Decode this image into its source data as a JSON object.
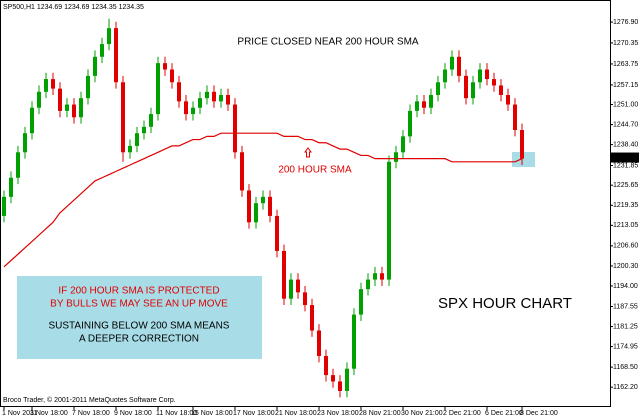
{
  "chart_data": {
    "type": "candlestick",
    "header": "SP500,H1 1234.69 1234.69 1234.35 1234.35",
    "footer": "Broco Trader, © 2001-2011 MetaQuotes Software Corp.",
    "annotations": {
      "title": "PRICE CLOSED NEAR 200 HOUR SMA",
      "sma_label": "200 HOUR SMA",
      "box_lines": [
        "IF 200 HOUR SMA IS PROTECTED",
        "BY BULLS WE MAY SEE AN UP MOVE",
        "SUSTAINING BELOW 200 SMA MEANS",
        "A DEEPER CORRECTION"
      ],
      "chart_name": "SPX HOUR CHART"
    },
    "last_price": 1234.35,
    "up_color": "#00a000",
    "down_color": "#e00000",
    "sma_color": "#e00000",
    "ylim": [
      1156.6,
      1282.9
    ],
    "yticks": [
      {
        "value": 1276.9,
        "label": "1276.90"
      },
      1270.35,
      1263.75,
      1257.15,
      {
        "value": 1251,
        "label": "1251.00"
      },
      {
        "value": 1244.7,
        "label": "1244.70"
      },
      {
        "value": 1238.4,
        "label": "1238.40"
      },
      1231.85,
      1225.65,
      1219.35,
      1213.05,
      {
        "value": 1206.6,
        "label": "1206.60"
      },
      {
        "value": 1200.3,
        "label": "1200.30"
      },
      {
        "value": 1194,
        "label": "1194.00"
      },
      1187.55,
      1181.25,
      1174.95,
      {
        "value": 1168.5,
        "label": "1168.50"
      },
      {
        "value": 1162.2,
        "label": "1162.20"
      }
    ],
    "categories": [
      "1 Nov 2011",
      null,
      null,
      null,
      "3 Nov 18:00",
      null,
      null,
      null,
      null,
      null,
      "7 Nov 18:00",
      null,
      null,
      null,
      null,
      null,
      "9 Nov 18:00",
      null,
      null,
      null,
      null,
      null,
      "11 Nov 18:00",
      null,
      null,
      null,
      null,
      "15 Nov 18:00",
      null,
      null,
      null,
      null,
      null,
      "17 Nov 18:00",
      null,
      null,
      null,
      null,
      null,
      "21 Nov 18:00",
      null,
      null,
      null,
      null,
      null,
      "23 Nov 18:00",
      null,
      null,
      null,
      null,
      null,
      "28 Nov 21:00",
      null,
      null,
      null,
      null,
      null,
      "30 Nov 21:00",
      null,
      null,
      null,
      null,
      null,
      "2 Dec 21:00",
      null,
      null,
      null,
      null,
      null,
      "6 Dec 21:00",
      null,
      null,
      null,
      null,
      "8 Dec 21:00"
    ],
    "ohlc": [
      [
        1216,
        1224,
        1214,
        1222
      ],
      [
        1222,
        1230,
        1220,
        1228
      ],
      [
        1228,
        1238,
        1226,
        1236
      ],
      [
        1236,
        1244,
        1234,
        1242
      ],
      [
        1242,
        1252,
        1240,
        1250
      ],
      [
        1250,
        1257,
        1248,
        1255
      ],
      [
        1255,
        1261,
        1253,
        1259
      ],
      [
        1259,
        1261,
        1254,
        1256
      ],
      [
        1256,
        1258,
        1247,
        1249
      ],
      [
        1249,
        1253,
        1247,
        1251
      ],
      [
        1251,
        1253,
        1245,
        1247
      ],
      [
        1247,
        1255,
        1245,
        1253
      ],
      [
        1253,
        1262,
        1251,
        1260
      ],
      [
        1260,
        1268,
        1258,
        1266
      ],
      [
        1266,
        1272,
        1264,
        1270
      ],
      [
        1270,
        1278,
        1268,
        1275
      ],
      [
        1275,
        1277,
        1256,
        1258
      ],
      [
        1258,
        1260,
        1233,
        1236
      ],
      [
        1236,
        1240,
        1234,
        1238
      ],
      [
        1238,
        1244,
        1236,
        1242
      ],
      [
        1242,
        1246,
        1240,
        1244
      ],
      [
        1244,
        1250,
        1242,
        1248
      ],
      [
        1248,
        1266,
        1246,
        1264
      ],
      [
        1264,
        1266,
        1260,
        1262
      ],
      [
        1262,
        1264,
        1256,
        1258
      ],
      [
        1258,
        1260,
        1250,
        1252
      ],
      [
        1252,
        1254,
        1246,
        1248
      ],
      [
        1248,
        1252,
        1246,
        1250
      ],
      [
        1250,
        1255,
        1248,
        1253
      ],
      [
        1253,
        1257,
        1251,
        1255
      ],
      [
        1255,
        1257,
        1250,
        1252
      ],
      [
        1252,
        1256,
        1250,
        1254
      ],
      [
        1254,
        1256,
        1249,
        1251
      ],
      [
        1251,
        1253,
        1234,
        1236
      ],
      [
        1236,
        1238,
        1222,
        1224
      ],
      [
        1224,
        1226,
        1212,
        1214
      ],
      [
        1214,
        1222,
        1212,
        1220
      ],
      [
        1220,
        1224,
        1218,
        1222
      ],
      [
        1222,
        1224,
        1214,
        1216
      ],
      [
        1216,
        1218,
        1203,
        1205
      ],
      [
        1205,
        1207,
        1188,
        1190
      ],
      [
        1190,
        1198,
        1188,
        1196
      ],
      [
        1196,
        1198,
        1190,
        1192
      ],
      [
        1192,
        1194,
        1186,
        1188
      ],
      [
        1188,
        1190,
        1178,
        1180
      ],
      [
        1180,
        1182,
        1170,
        1172
      ],
      [
        1172,
        1174,
        1164,
        1166
      ],
      [
        1166,
        1168,
        1162,
        1164
      ],
      [
        1164,
        1166,
        1159,
        1161
      ],
      [
        1161,
        1170,
        1159,
        1168
      ],
      [
        1168,
        1187,
        1166,
        1185
      ],
      [
        1185,
        1195,
        1183,
        1193
      ],
      [
        1193,
        1198,
        1191,
        1196
      ],
      [
        1196,
        1200,
        1194,
        1198
      ],
      [
        1198,
        1200,
        1194,
        1196
      ],
      [
        1196,
        1235,
        1194,
        1233
      ],
      [
        1233,
        1238,
        1231,
        1236
      ],
      [
        1236,
        1243,
        1234,
        1241
      ],
      [
        1241,
        1251,
        1239,
        1249
      ],
      [
        1249,
        1254,
        1247,
        1252
      ],
      [
        1252,
        1254,
        1248,
        1250
      ],
      [
        1250,
        1256,
        1248,
        1254
      ],
      [
        1254,
        1260,
        1252,
        1258
      ],
      [
        1258,
        1264,
        1256,
        1262
      ],
      [
        1262,
        1268,
        1260,
        1266
      ],
      [
        1266,
        1268,
        1258,
        1260
      ],
      [
        1260,
        1262,
        1251,
        1253
      ],
      [
        1253,
        1260,
        1251,
        1258
      ],
      [
        1258,
        1264,
        1256,
        1262
      ],
      [
        1262,
        1264,
        1257,
        1259
      ],
      [
        1259,
        1261,
        1255,
        1257
      ],
      [
        1257,
        1259,
        1252,
        1254
      ],
      [
        1254,
        1256,
        1249,
        1251
      ],
      [
        1251,
        1253,
        1241,
        1243
      ],
      [
        1243,
        1245,
        1232,
        1234
      ]
    ],
    "sma": [
      1200,
      1202,
      1204,
      1206,
      1208,
      1210,
      1212,
      1214,
      1217,
      1219,
      1221,
      1223,
      1225,
      1227,
      1228,
      1229,
      1230,
      1231,
      1232,
      1233,
      1234,
      1235,
      1236,
      1237,
      1238,
      1238,
      1239,
      1240,
      1240,
      1241,
      1241,
      1242,
      1242,
      1242,
      1242,
      1242,
      1242,
      1242,
      1242,
      1242,
      1241,
      1241,
      1241,
      1240,
      1240,
      1239,
      1239,
      1238,
      1237,
      1237,
      1236,
      1235,
      1235,
      1234,
      1234,
      1234,
      1234,
      1234,
      1234,
      1234,
      1234,
      1234,
      1234,
      1234,
      1233,
      1233,
      1233,
      1233,
      1233,
      1233,
      1233,
      1233,
      1233,
      1233,
      1234
    ]
  }
}
